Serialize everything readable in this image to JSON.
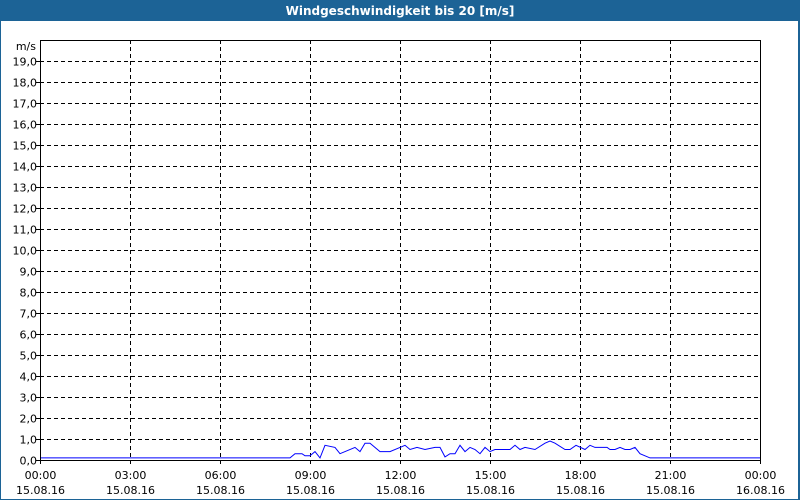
{
  "title": "Windgeschwindigkeit bis 20 [m/s]",
  "chart_data": {
    "type": "line",
    "title": "Windgeschwindigkeit bis 20 [m/s]",
    "ylabel": "m/s",
    "ylim": [
      0,
      20
    ],
    "y_ticks": [
      "0,0",
      "1,0",
      "2,0",
      "3,0",
      "4,0",
      "5,0",
      "6,0",
      "7,0",
      "8,0",
      "9,0",
      "10,0",
      "11,0",
      "12,0",
      "13,0",
      "14,0",
      "15,0",
      "16,0",
      "17,0",
      "18,0",
      "19,0"
    ],
    "x_ticks": [
      {
        "time": "00:00",
        "date": "15.08.16"
      },
      {
        "time": "03:00",
        "date": "15.08.16"
      },
      {
        "time": "06:00",
        "date": "15.08.16"
      },
      {
        "time": "09:00",
        "date": "15.08.16"
      },
      {
        "time": "12:00",
        "date": "15.08.16"
      },
      {
        "time": "15:00",
        "date": "15.08.16"
      },
      {
        "time": "18:00",
        "date": "15.08.16"
      },
      {
        "time": "21:00",
        "date": "15.08.16"
      },
      {
        "time": "00:00",
        "date": "16.08.16"
      }
    ],
    "xlim": [
      "15.08.16 00:00",
      "16.08.16 00:00"
    ],
    "grid": true,
    "line_color": "#0000ff",
    "points": [
      [
        "15.08.16 00:00",
        0.1
      ],
      [
        "15.08.16 08:20",
        0.1
      ],
      [
        "15.08.16 08:30",
        0.3
      ],
      [
        "15.08.16 08:44",
        0.3
      ],
      [
        "15.08.16 08:50",
        0.2
      ],
      [
        "15.08.16 09:00",
        0.2
      ],
      [
        "15.08.16 09:10",
        0.4
      ],
      [
        "15.08.16 09:20",
        0.1
      ],
      [
        "15.08.16 09:30",
        0.7
      ],
      [
        "15.08.16 09:50",
        0.6
      ],
      [
        "15.08.16 10:00",
        0.3
      ],
      [
        "15.08.16 10:30",
        0.6
      ],
      [
        "15.08.16 10:40",
        0.4
      ],
      [
        "15.08.16 10:50",
        0.8
      ],
      [
        "15.08.16 11:00",
        0.8
      ],
      [
        "15.08.16 11:20",
        0.4
      ],
      [
        "15.08.16 11:40",
        0.4
      ],
      [
        "15.08.16 12:00",
        0.6
      ],
      [
        "15.08.16 12:10",
        0.7
      ],
      [
        "15.08.16 12:20",
        0.5
      ],
      [
        "15.08.16 12:34",
        0.6
      ],
      [
        "15.08.16 12:50",
        0.5
      ],
      [
        "15.08.16 13:10",
        0.6
      ],
      [
        "15.08.16 13:20",
        0.6
      ],
      [
        "15.08.16 13:30",
        0.15
      ],
      [
        "15.08.16 13:40",
        0.3
      ],
      [
        "15.08.16 13:50",
        0.3
      ],
      [
        "15.08.16 14:00",
        0.7
      ],
      [
        "15.08.16 14:10",
        0.4
      ],
      [
        "15.08.16 14:20",
        0.6
      ],
      [
        "15.08.16 14:30",
        0.5
      ],
      [
        "15.08.16 14:40",
        0.3
      ],
      [
        "15.08.16 14:50",
        0.6
      ],
      [
        "15.08.16 15:00",
        0.4
      ],
      [
        "15.08.16 15:10",
        0.5
      ],
      [
        "15.08.16 15:40",
        0.5
      ],
      [
        "15.08.16 15:50",
        0.7
      ],
      [
        "15.08.16 16:00",
        0.5
      ],
      [
        "15.08.16 16:10",
        0.6
      ],
      [
        "15.08.16 16:30",
        0.5
      ],
      [
        "15.08.16 16:50",
        0.8
      ],
      [
        "15.08.16 17:00",
        0.9
      ],
      [
        "15.08.16 17:10",
        0.8
      ],
      [
        "15.08.16 17:30",
        0.5
      ],
      [
        "15.08.16 17:40",
        0.5
      ],
      [
        "15.08.16 17:52",
        0.7
      ],
      [
        "15.08.16 18:10",
        0.5
      ],
      [
        "15.08.16 18:20",
        0.7
      ],
      [
        "15.08.16 18:30",
        0.6
      ],
      [
        "15.08.16 18:54",
        0.6
      ],
      [
        "15.08.16 19:00",
        0.5
      ],
      [
        "15.08.16 19:10",
        0.5
      ],
      [
        "15.08.16 19:20",
        0.6
      ],
      [
        "15.08.16 19:30",
        0.5
      ],
      [
        "15.08.16 19:40",
        0.5
      ],
      [
        "15.08.16 19:50",
        0.6
      ],
      [
        "15.08.16 20:00",
        0.3
      ],
      [
        "15.08.16 20:10",
        0.2
      ],
      [
        "15.08.16 20:20",
        0.1
      ],
      [
        "16.08.16 00:00",
        0.1
      ]
    ]
  }
}
